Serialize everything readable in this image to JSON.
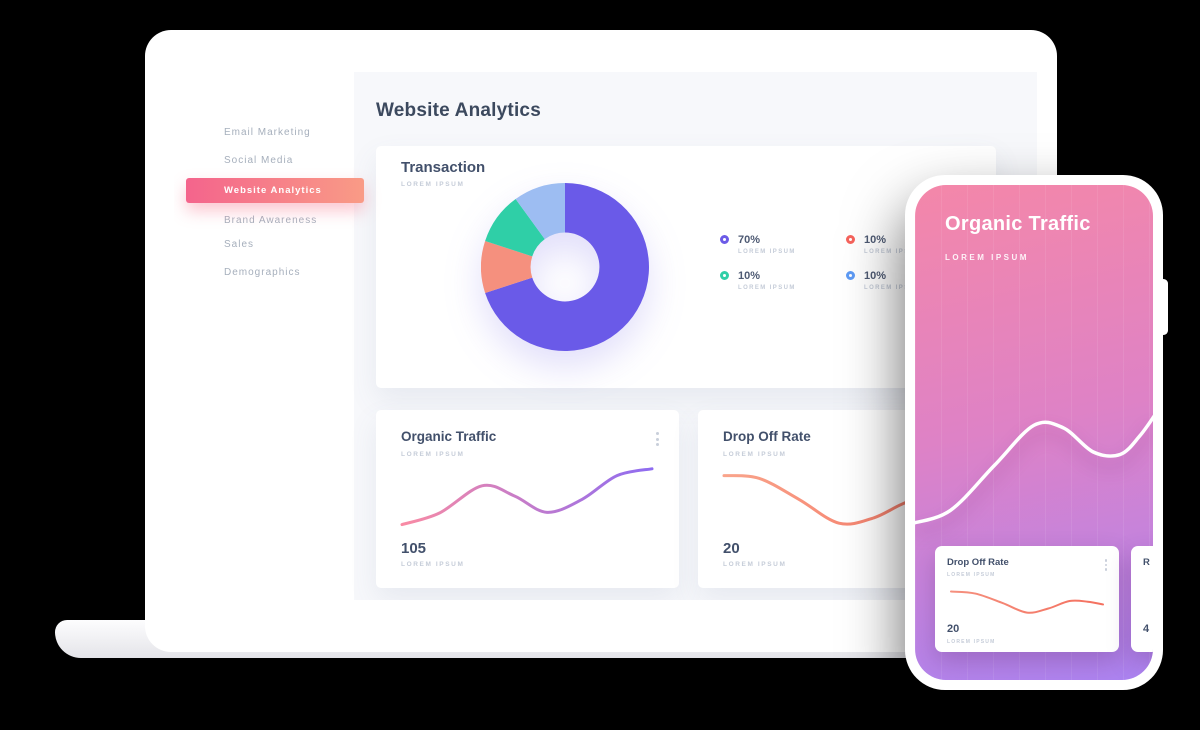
{
  "colors": {
    "page_bg": "#000000",
    "accent_gradient": [
      "#F4648C",
      "#F99B86"
    ],
    "phone_gradient": [
      "#F487A9",
      "#DE82C6",
      "#AC84F2"
    ],
    "heading": "#3C495E",
    "card_title": "#42506B",
    "muted": "#C5CCD8",
    "sidebar_text": "#A6AFBC",
    "content_bg": "#F7F8FB"
  },
  "header": {
    "title": "Website Analytics"
  },
  "sidebar": {
    "items": [
      {
        "label": "Email Marketing",
        "active": false
      },
      {
        "label": "Social Media",
        "active": false
      },
      {
        "label": "Website Analytics",
        "active": true
      },
      {
        "label": "Brand Awareness",
        "active": false
      },
      {
        "label": "Sales",
        "active": false
      },
      {
        "label": "Demographics",
        "active": false
      }
    ]
  },
  "transaction": {
    "title": "Transaction",
    "subtitle": "LOREM IPSUM",
    "legend": [
      {
        "value": "70%",
        "label": "LOREM IPSUM",
        "color": "#6C5BE7"
      },
      {
        "value": "10%",
        "label": "LOREM IPSUM",
        "color": "#F6635C"
      },
      {
        "value": "10%",
        "label": "LOREM IPSUM",
        "color": "#2FCFA7"
      },
      {
        "value": "10%",
        "label": "LOREM IPSUM",
        "color": "#5E9BF5"
      }
    ]
  },
  "organic_card": {
    "title": "Organic Traffic",
    "subtitle": "LOREM IPSUM",
    "value": "105",
    "value_label": "LOREM IPSUM"
  },
  "dropoff_card": {
    "title": "Drop Off Rate",
    "subtitle": "LOREM IPSUM",
    "value": "20",
    "value_label": "LOREM IPSUM"
  },
  "phone": {
    "title": "Organic Traffic",
    "subtitle": "LOREM IPSUM",
    "dropoff_card": {
      "title": "Drop Off Rate",
      "subtitle": "LOREM IPSUM",
      "value": "20",
      "value_label": "LOREM IPSUM"
    },
    "partial_card": {
      "title": "R",
      "value": "4"
    }
  },
  "chart_data": [
    {
      "el": "donut-chart",
      "type": "pie",
      "title": "Transaction",
      "donut": true,
      "start_angle_deg": -90,
      "direction": "clockwise",
      "slices": [
        {
          "label": "LOREM IPSUM",
          "value": 70,
          "color": "#6A5AE8"
        },
        {
          "label": "LOREM IPSUM",
          "value": 10,
          "color": "#F5907E"
        },
        {
          "label": "LOREM IPSUM",
          "value": 10,
          "color": "#2FCFA7"
        },
        {
          "label": "LOREM IPSUM",
          "value": 10,
          "color": "#9DBDF2"
        }
      ]
    },
    {
      "el": "organic-line",
      "type": "line",
      "title": "Organic Traffic",
      "current_value": 105,
      "stroke": [
        "#F98BA4",
        "#8E6CF1"
      ],
      "stroke_width": 3,
      "axes": "none",
      "points": [
        [
          0,
          8
        ],
        [
          15,
          25
        ],
        [
          32,
          65
        ],
        [
          45,
          50
        ],
        [
          58,
          26
        ],
        [
          72,
          45
        ],
        [
          86,
          80
        ],
        [
          100,
          90
        ]
      ]
    },
    {
      "el": "dropoff-line",
      "type": "line",
      "title": "Drop Off Rate",
      "current_value": 20,
      "stroke": [
        "#F9A48B",
        "#F4705F"
      ],
      "stroke_width": 3,
      "axes": "none",
      "points": [
        [
          0,
          80
        ],
        [
          14,
          76
        ],
        [
          30,
          45
        ],
        [
          46,
          10
        ],
        [
          60,
          18
        ],
        [
          74,
          42
        ],
        [
          88,
          46
        ],
        [
          100,
          38
        ]
      ]
    },
    {
      "el": "phone-line",
      "type": "line",
      "title": "Organic Traffic (phone)",
      "stroke": [
        "#FFFFFF",
        "#FFFFFF"
      ],
      "stroke_width": 3.5,
      "pad_x": -4,
      "axes": "none",
      "points": [
        [
          0,
          4
        ],
        [
          16,
          14
        ],
        [
          34,
          48
        ],
        [
          50,
          78
        ],
        [
          62,
          76
        ],
        [
          74,
          58
        ],
        [
          85,
          56
        ],
        [
          93,
          70
        ],
        [
          100,
          88
        ]
      ]
    },
    {
      "el": "phone-card-line",
      "type": "line",
      "title": "Drop Off Rate (phone)",
      "current_value": 20,
      "stroke": [
        "#F5907E",
        "#F4705F"
      ],
      "stroke_width": 2,
      "axes": "none",
      "points": [
        [
          0,
          72
        ],
        [
          16,
          66
        ],
        [
          34,
          38
        ],
        [
          50,
          10
        ],
        [
          64,
          22
        ],
        [
          78,
          44
        ],
        [
          90,
          42
        ],
        [
          100,
          34
        ]
      ]
    }
  ]
}
